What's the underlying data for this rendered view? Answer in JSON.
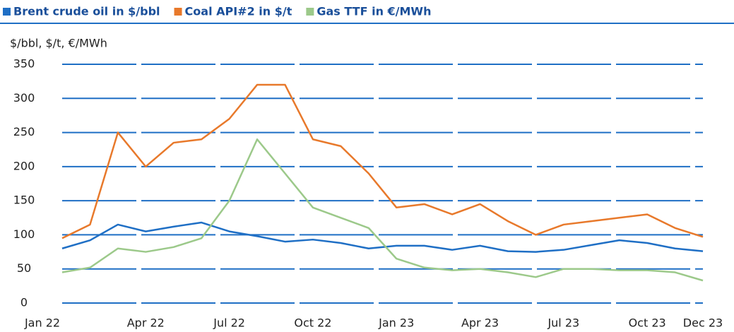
{
  "chart_data": {
    "type": "line",
    "ylabel": "$/bbl, $/t, €/MWh",
    "categories": [
      "Jan 22",
      null,
      null,
      "Apr 22",
      null,
      null,
      "Jul 22",
      null,
      null,
      "Oct 22",
      null,
      null,
      "Jan 23",
      null,
      null,
      "Apr 23",
      null,
      null,
      "Jul 23",
      null,
      null,
      "Oct 23",
      null,
      "Dec 23"
    ],
    "series": [
      {
        "name": "Brent crude oil in $/bbl",
        "color": "#1f6fc5",
        "values": [
          80,
          92,
          115,
          105,
          112,
          118,
          105,
          98,
          90,
          93,
          88,
          80,
          84,
          84,
          78,
          84,
          76,
          75,
          78,
          85,
          92,
          88,
          80,
          76
        ]
      },
      {
        "name": "Coal API#2 in $/t",
        "color": "#e8792b",
        "values": [
          95,
          115,
          250,
          200,
          235,
          240,
          270,
          320,
          320,
          240,
          230,
          190,
          140,
          145,
          130,
          145,
          120,
          100,
          115,
          120,
          125,
          130,
          110,
          97
        ]
      },
      {
        "name": "Gas TTF in €/MWh",
        "color": "#9cc98a",
        "values": [
          45,
          52,
          80,
          75,
          82,
          95,
          150,
          240,
          190,
          140,
          125,
          110,
          65,
          52,
          48,
          50,
          45,
          38,
          50,
          50,
          48,
          48,
          45,
          33
        ]
      }
    ],
    "ylim": [
      0,
      350
    ],
    "yticks": [
      0,
      50,
      100,
      150,
      200,
      250,
      300,
      350
    ],
    "grid": true,
    "legend": "top"
  }
}
